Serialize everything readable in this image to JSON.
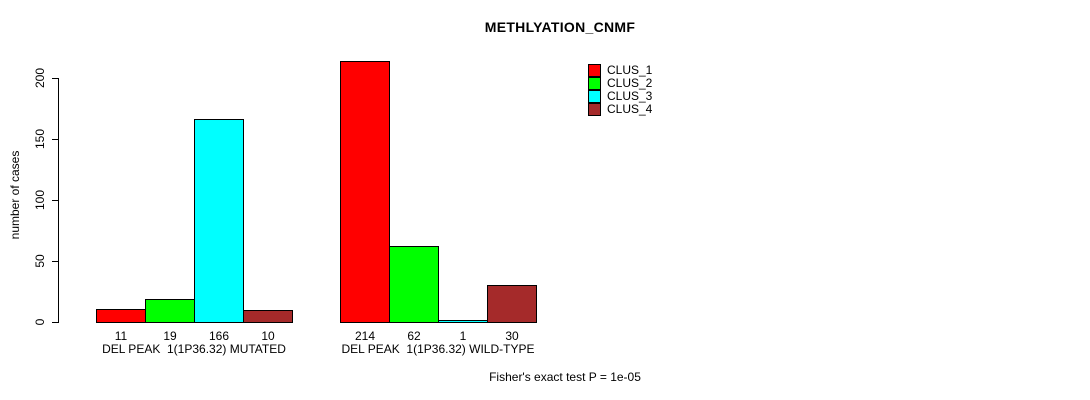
{
  "chart_data": {
    "type": "bar",
    "title": "METHLYATION_CNMF",
    "xlabel": "",
    "ylabel": "number of cases",
    "ylim": [
      0,
      215
    ],
    "yticks": [
      0,
      50,
      100,
      150,
      200
    ],
    "grid": false,
    "legend_position": "top-right",
    "categories": [
      "DEL PEAK  1(1P36.32) MUTATED",
      "DEL PEAK  1(1P36.32) WILD-TYPE"
    ],
    "series": [
      {
        "name": "CLUS_1",
        "color": "#ff0000",
        "values": [
          11,
          214
        ]
      },
      {
        "name": "CLUS_2",
        "color": "#00ff00",
        "values": [
          19,
          62
        ]
      },
      {
        "name": "CLUS_3",
        "color": "#00ffff",
        "values": [
          166,
          1
        ]
      },
      {
        "name": "CLUS_4",
        "color": "#a52a2a",
        "values": [
          10,
          30
        ]
      }
    ],
    "bar_value_labels_shown": true,
    "annotation": "Fisher's exact test P = 1e-05"
  },
  "colors": {
    "background": "#ffffff",
    "axis": "#000000",
    "bar_border": "#000000",
    "text": "#000000"
  }
}
